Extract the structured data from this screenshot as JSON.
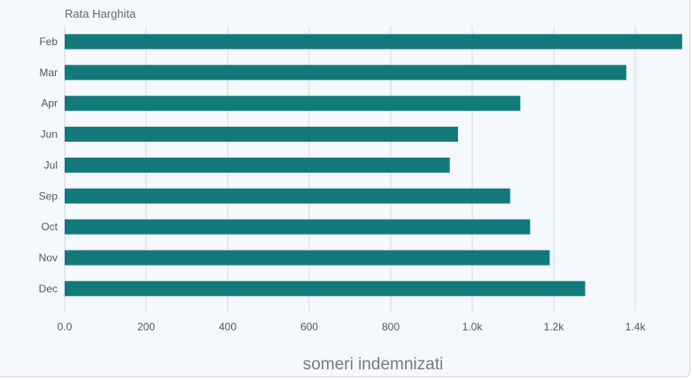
{
  "chart_data": {
    "type": "bar",
    "orientation": "horizontal",
    "series_label": "Rata Harghita",
    "categories": [
      "Feb",
      "Mar",
      "Apr",
      "Jun",
      "Jul",
      "Sep",
      "Oct",
      "Nov",
      "Dec"
    ],
    "values": [
      1515,
      1378,
      1118,
      965,
      945,
      1093,
      1142,
      1190,
      1277
    ],
    "x_ticks": [
      "0.0",
      "200",
      "400",
      "600",
      "800",
      "1.0k",
      "1.2k",
      "1.4k"
    ],
    "xlabel": "someri indemnizati",
    "xlim": [
      0,
      1515
    ],
    "grid": "vertical",
    "bar_color": "#137a7c"
  }
}
